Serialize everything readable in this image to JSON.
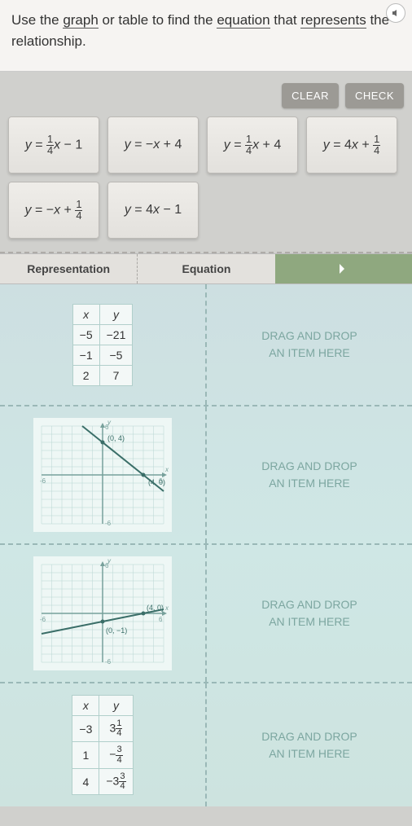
{
  "prompt": {
    "pre": "Use the ",
    "w1": "graph",
    "mid1": " or table to find the ",
    "w2": "equation",
    "mid2": " that ",
    "w3": "represents",
    "post": " the relationship."
  },
  "buttons": {
    "clear": "CLEAR",
    "check": "CHECK"
  },
  "tiles": {
    "t1": "y = ¼x − 1",
    "t2": "y = −x + 4",
    "t3": "y = ¼x + 4",
    "t4": "y = 4x + ¼",
    "t5": "y = −x + ¼",
    "t6": "y = 4x − 1"
  },
  "headers": {
    "rep": "Representation",
    "eq": "Equation"
  },
  "dropzone": {
    "line1": "DRAG AND DROP",
    "line2": "AN ITEM HERE"
  },
  "table1": {
    "cols": [
      "x",
      "y"
    ],
    "rows": [
      [
        "−5",
        "−21"
      ],
      [
        "−1",
        "−5"
      ],
      [
        "2",
        "7"
      ]
    ]
  },
  "graph1": {
    "type": "line",
    "points_labels": [
      "(0, 4)",
      "(4, 0)"
    ],
    "points": [
      [
        0,
        4
      ],
      [
        4,
        0
      ]
    ],
    "xlim": [
      -6,
      6
    ],
    "ylim": [
      -6,
      6
    ],
    "axis_color": "#77a09b",
    "line_color": "#3a6e68",
    "grid_color": "#b8d6d2",
    "bg": "#eef7f5"
  },
  "graph2": {
    "type": "line",
    "points_labels": [
      "(4, 0)",
      "(0, −1)"
    ],
    "points": [
      [
        4,
        0
      ],
      [
        0,
        -1
      ]
    ],
    "xlim": [
      -6,
      6
    ],
    "ylim": [
      -6,
      6
    ],
    "axis_color": "#77a09b",
    "line_color": "#3a6e68",
    "grid_color": "#b8d6d2",
    "bg": "#eef7f5"
  },
  "table2": {
    "cols": [
      "x",
      "y"
    ],
    "rows": [
      [
        "−3",
        "3¼"
      ],
      [
        "1",
        "−¾"
      ],
      [
        "4",
        "−3¾"
      ]
    ]
  }
}
